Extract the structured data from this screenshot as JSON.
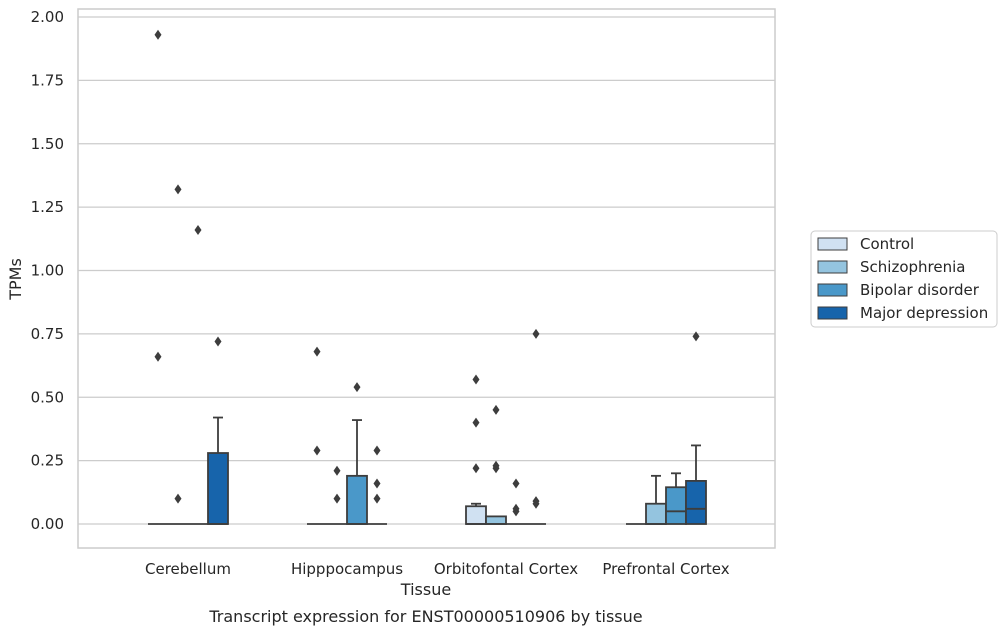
{
  "chart_data": {
    "type": "box",
    "caption": "Transcript expression for ENST00000510906 by tissue",
    "xlabel": "Tissue",
    "ylabel": "TPMs",
    "ylim": [
      -0.09,
      2.03
    ],
    "yticks": [
      "0.00",
      "0.25",
      "0.50",
      "0.75",
      "1.00",
      "1.25",
      "1.50",
      "1.75",
      "2.00"
    ],
    "ytick_values": [
      0,
      0.25,
      0.5,
      0.75,
      1.0,
      1.25,
      1.5,
      1.75,
      2.0
    ],
    "grid": "horizontal",
    "legend_position": "right",
    "categories": [
      "Cerebellum",
      "Hipppocampus",
      "Orbitofontal Cortex",
      "Prefrontal Cortex"
    ],
    "series": [
      {
        "name": "Control",
        "color": "#d0e1f2",
        "boxes": [
          {
            "q1": 0,
            "median": 0,
            "q3": 0,
            "whisker_low": 0,
            "whisker_high": 0,
            "outliers": [
              0.66,
              1.93
            ]
          },
          {
            "q1": 0,
            "median": 0,
            "q3": 0,
            "whisker_low": 0,
            "whisker_high": 0,
            "outliers": [
              0.68,
              0.29
            ]
          },
          {
            "q1": 0,
            "median": 0,
            "q3": 0.07,
            "whisker_low": 0,
            "whisker_high": 0.08,
            "outliers": [
              0.57,
              0.4,
              0.22
            ]
          },
          {
            "q1": 0,
            "median": 0,
            "q3": 0,
            "whisker_low": 0,
            "whisker_high": 0,
            "outliers": []
          }
        ]
      },
      {
        "name": "Schizophrenia",
        "color": "#94c4df",
        "boxes": [
          {
            "q1": 0,
            "median": 0,
            "q3": 0,
            "whisker_low": 0,
            "whisker_high": 0,
            "outliers": [
              1.32,
              0.1
            ]
          },
          {
            "q1": 0,
            "median": 0,
            "q3": 0,
            "whisker_low": 0,
            "whisker_high": 0,
            "outliers": [
              0.21,
              0.1
            ]
          },
          {
            "q1": 0,
            "median": 0,
            "q3": 0.03,
            "whisker_low": 0,
            "whisker_high": 0.03,
            "outliers": [
              0.45,
              0.23,
              0.22
            ]
          },
          {
            "q1": 0,
            "median": 0,
            "q3": 0.08,
            "whisker_low": 0,
            "whisker_high": 0.19,
            "outliers": []
          }
        ]
      },
      {
        "name": "Bipolar disorder",
        "color": "#4a98c9",
        "boxes": [
          {
            "q1": 0,
            "median": 0,
            "q3": 0,
            "whisker_low": 0,
            "whisker_high": 0,
            "outliers": [
              1.16
            ]
          },
          {
            "q1": 0,
            "median": 0,
            "q3": 0.19,
            "whisker_low": 0,
            "whisker_high": 0.41,
            "outliers": [
              0.54
            ]
          },
          {
            "q1": 0,
            "median": 0,
            "q3": 0,
            "whisker_low": 0,
            "whisker_high": 0,
            "outliers": [
              0.16,
              0.06,
              0.05
            ]
          },
          {
            "q1": 0,
            "median": 0.05,
            "q3": 0.145,
            "whisker_low": 0,
            "whisker_high": 0.2,
            "outliers": []
          }
        ]
      },
      {
        "name": "Major depression",
        "color": "#1764ab",
        "boxes": [
          {
            "q1": 0,
            "median": 0,
            "q3": 0.28,
            "whisker_low": 0,
            "whisker_high": 0.42,
            "outliers": [
              0.72
            ]
          },
          {
            "q1": 0,
            "median": 0,
            "q3": 0,
            "whisker_low": 0,
            "whisker_high": 0,
            "outliers": [
              0.29,
              0.16,
              0.1
            ]
          },
          {
            "q1": 0,
            "median": 0,
            "q3": 0,
            "whisker_low": 0,
            "whisker_high": 0,
            "outliers": [
              0.75,
              0.09,
              0.08
            ]
          },
          {
            "q1": 0,
            "median": 0.06,
            "q3": 0.17,
            "whisker_low": 0,
            "whisker_high": 0.31,
            "outliers": [
              0.74
            ]
          }
        ]
      }
    ]
  }
}
